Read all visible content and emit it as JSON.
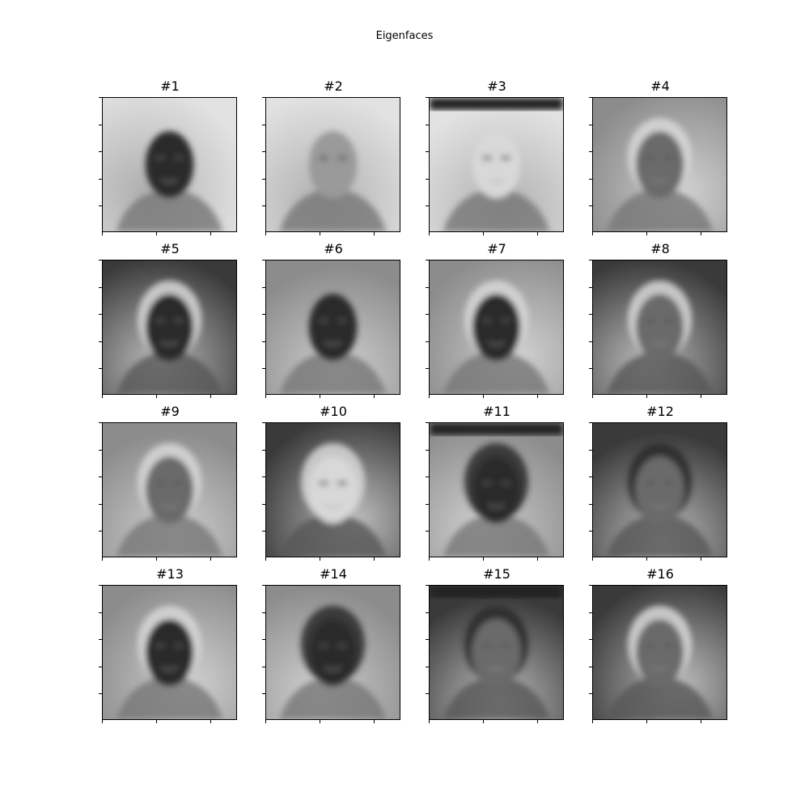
{
  "figure": {
    "title": "Eigenfaces"
  },
  "panels": [
    {
      "label": "#1",
      "face": "dark",
      "bg": "light",
      "hair": "none"
    },
    {
      "label": "#2",
      "face": "mid-light",
      "bg": "light",
      "hair": "none"
    },
    {
      "label": "#3",
      "face": "light",
      "bg": "light",
      "hair": "none",
      "top_band": "dark"
    },
    {
      "label": "#4",
      "face": "mid",
      "bg": "mixed",
      "hair": "light"
    },
    {
      "label": "#5",
      "face": "dark",
      "bg": "dark",
      "hair": "light"
    },
    {
      "label": "#6",
      "face": "dark",
      "bg": "mixed",
      "hair": "none"
    },
    {
      "label": "#7",
      "face": "dark",
      "bg": "mixed",
      "hair": "light"
    },
    {
      "label": "#8",
      "face": "mid",
      "bg": "dark",
      "hair": "light"
    },
    {
      "label": "#9",
      "face": "mid",
      "bg": "mixed",
      "hair": "light"
    },
    {
      "label": "#10",
      "face": "light",
      "bg": "dark",
      "hair": "light"
    },
    {
      "label": "#11",
      "face": "dark",
      "bg": "mixed",
      "hair": "dark",
      "top_band": "dark"
    },
    {
      "label": "#12",
      "face": "mid",
      "bg": "dark",
      "hair": "dark"
    },
    {
      "label": "#13",
      "face": "dark",
      "bg": "mixed",
      "hair": "light"
    },
    {
      "label": "#14",
      "face": "dark",
      "bg": "mixed",
      "hair": "dark"
    },
    {
      "label": "#15",
      "face": "mid",
      "bg": "dark",
      "hair": "dark",
      "top_band": "dark"
    },
    {
      "label": "#16",
      "face": "mid",
      "bg": "dark",
      "hair": "light"
    }
  ]
}
